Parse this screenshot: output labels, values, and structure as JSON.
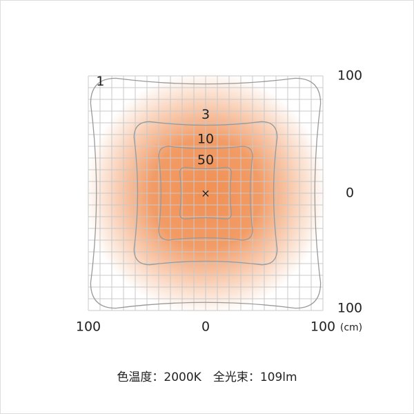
{
  "chart_data": {
    "type": "contour",
    "xlim": [
      -100,
      100
    ],
    "ylim": [
      -100,
      100
    ],
    "xticks": [
      {
        "value": -100,
        "label": "100"
      },
      0,
      100
    ],
    "yticks": [
      {
        "value": -100,
        "label": "100"
      },
      0,
      100
    ],
    "gridlines": [
      -100,
      -90,
      -80,
      -70,
      -60,
      -50,
      -40,
      -30,
      -20,
      -10,
      0,
      10,
      20,
      30,
      40,
      50,
      60,
      70,
      80,
      90,
      100
    ],
    "unit": "(cm)",
    "center_marker": "×",
    "glow_color": "#f08a4b",
    "contours": [
      {
        "level": 1,
        "extent": 98
      },
      {
        "level": 3,
        "extent": 61
      },
      {
        "level": 10,
        "extent": 40
      },
      {
        "level": 50,
        "extent": 22
      }
    ],
    "caption": "色温度：2000K　全光束：109lm"
  }
}
